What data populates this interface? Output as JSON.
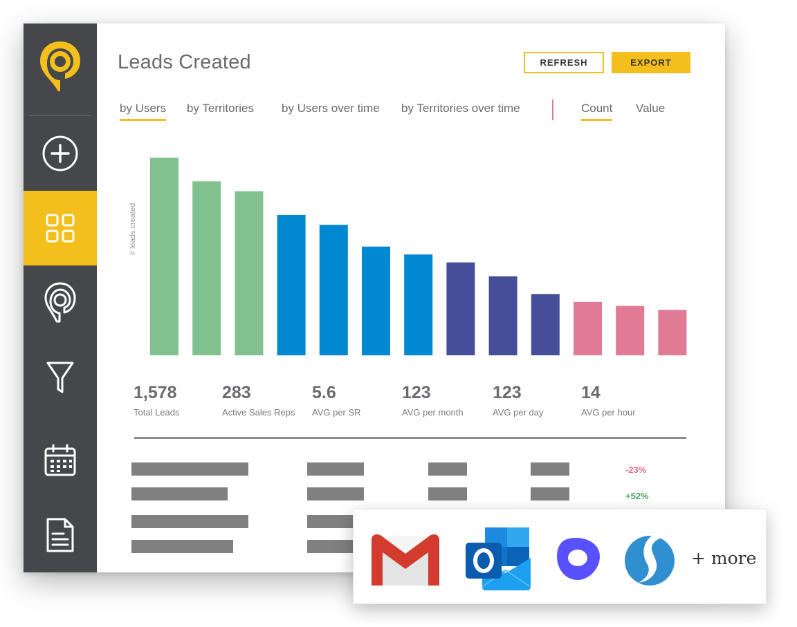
{
  "header": {
    "title": "Leads Created",
    "refresh_label": "REFRESH",
    "export_label": "EXPORT"
  },
  "tabs": [
    {
      "label": "by Users",
      "active": true
    },
    {
      "label": "by Territories",
      "active": false
    },
    {
      "label": "by Users over time",
      "active": false
    },
    {
      "label": "by Territories over time",
      "active": false
    }
  ],
  "metric_tabs": [
    {
      "label": "Count",
      "active": true
    },
    {
      "label": "Value",
      "active": false
    }
  ],
  "colors": {
    "accent": "#f2bf1c",
    "sidebar": "#46474b",
    "green": "#81c18f",
    "blue": "#0088d1",
    "indigo": "#464e9a",
    "pink": "#e07a95"
  },
  "sidebar": {
    "items": [
      {
        "icon": "plus-circle-icon",
        "active": false
      },
      {
        "icon": "grid-icon",
        "active": true
      },
      {
        "icon": "map-pin-icon",
        "active": false
      },
      {
        "icon": "filter-icon",
        "active": false
      },
      {
        "icon": "calendar-icon",
        "active": false
      },
      {
        "icon": "document-icon",
        "active": false
      }
    ]
  },
  "chart_data": {
    "type": "bar",
    "ylabel": "# leads created",
    "ylim": [
      0,
      100
    ],
    "values": [
      100,
      88,
      83,
      71,
      66,
      55,
      51,
      47,
      40,
      31,
      27,
      25,
      23
    ],
    "colors": [
      "green",
      "green",
      "green",
      "blue",
      "blue",
      "blue",
      "blue",
      "indigo",
      "indigo",
      "indigo",
      "pink",
      "pink",
      "pink"
    ],
    "grid": false
  },
  "stats": [
    {
      "value": "1,578",
      "label": "Total Leads"
    },
    {
      "value": "283",
      "label": "Active Sales Reps"
    },
    {
      "value": "5.6",
      "label": "AVG per SR"
    },
    {
      "value": "123",
      "label": "AVG per month"
    },
    {
      "value": "123",
      "label": "AVG per day"
    },
    {
      "value": "14",
      "label": "AVG per hour"
    }
  ],
  "table": {
    "deltas": [
      "-23%",
      "+52%"
    ]
  },
  "integrations": {
    "icons": [
      "gmail-icon",
      "outlook-icon",
      "outreach-icon",
      "salesloft-icon"
    ],
    "more_label": "+ more"
  }
}
